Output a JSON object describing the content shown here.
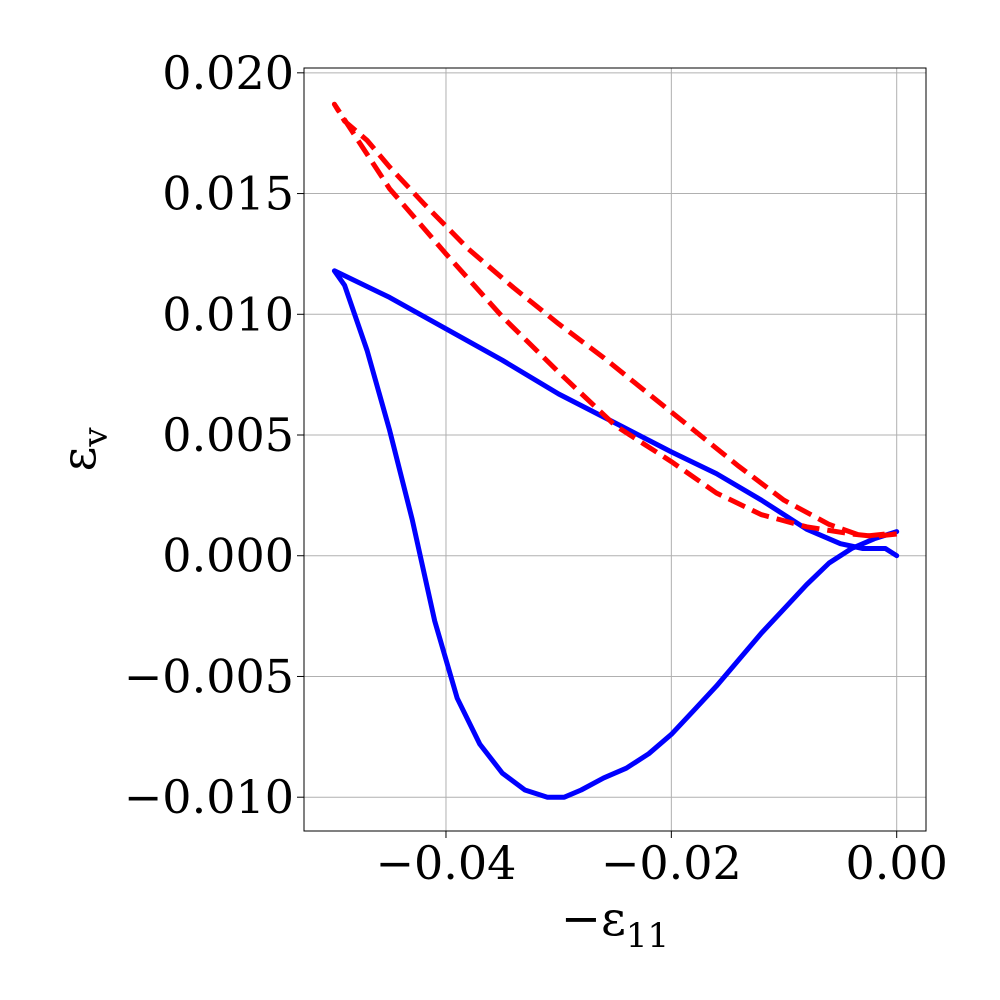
{
  "chart_data": {
    "type": "line",
    "title": "",
    "xlabel": "−ε",
    "xlabel_sub": "11",
    "ylabel": "ε",
    "ylabel_sub": "v",
    "xlim": [
      -0.0526,
      0.0026
    ],
    "ylim": [
      -0.0114,
      0.0202
    ],
    "xticks": [
      -0.04,
      -0.02,
      0.0
    ],
    "xtick_labels": [
      "−0.04",
      "−0.02",
      "0.00"
    ],
    "yticks": [
      -0.01,
      -0.005,
      0.0,
      0.005,
      0.01,
      0.015,
      0.02
    ],
    "ytick_labels": [
      "−0.010",
      "−0.005",
      "0.000",
      "0.005",
      "0.010",
      "0.015",
      "0.020"
    ],
    "grid": true,
    "legend": "none",
    "series": [
      {
        "color": "#0000ff",
        "style": "solid",
        "x": [
          0.0,
          -0.001,
          -0.003,
          -0.005,
          -0.008,
          -0.012,
          -0.016,
          -0.02,
          -0.025,
          -0.03,
          -0.035,
          -0.04,
          -0.045,
          -0.0499,
          -0.049,
          -0.047,
          -0.045,
          -0.043,
          -0.041,
          -0.039,
          -0.037,
          -0.035,
          -0.033,
          -0.031,
          -0.0295,
          -0.028,
          -0.026,
          -0.024,
          -0.022,
          -0.02,
          -0.018,
          -0.016,
          -0.014,
          -0.012,
          -0.01,
          -0.008,
          -0.006,
          -0.004,
          -0.002,
          0.0
        ],
        "y": [
          0.0,
          0.0003,
          0.0003,
          0.0005,
          0.0011,
          0.0023,
          0.0034,
          0.0043,
          0.0055,
          0.0067,
          0.0081,
          0.0094,
          0.0107,
          0.0118,
          0.0112,
          0.0085,
          0.0052,
          0.0015,
          -0.0027,
          -0.0059,
          -0.0078,
          -0.009,
          -0.0097,
          -0.01,
          -0.01,
          -0.0097,
          -0.0092,
          -0.0088,
          -0.0082,
          -0.0074,
          -0.0064,
          -0.0054,
          -0.0043,
          -0.0032,
          -0.0022,
          -0.0012,
          -0.0003,
          0.0003,
          0.0007,
          0.001
        ]
      },
      {
        "color": "#ff0000",
        "style": "dashed",
        "x": [
          0.0,
          -0.002,
          -0.004,
          -0.008,
          -0.012,
          -0.016,
          -0.02,
          -0.025,
          -0.03,
          -0.035,
          -0.04,
          -0.045,
          -0.0499,
          -0.049,
          -0.047,
          -0.045,
          -0.042,
          -0.038,
          -0.034,
          -0.03,
          -0.026,
          -0.022,
          -0.018,
          -0.014,
          -0.01,
          -0.006,
          -0.003,
          -0.001,
          0.0
        ],
        "y": [
          0.0009,
          0.0008,
          0.0009,
          0.0012,
          0.0017,
          0.0026,
          0.0039,
          0.0054,
          0.0076,
          0.0099,
          0.0125,
          0.0152,
          0.0187,
          0.018,
          0.0172,
          0.0161,
          0.0146,
          0.0127,
          0.0111,
          0.0096,
          0.0082,
          0.0067,
          0.0052,
          0.0037,
          0.0023,
          0.0013,
          0.0008,
          0.0009,
          0.0009
        ]
      }
    ]
  }
}
